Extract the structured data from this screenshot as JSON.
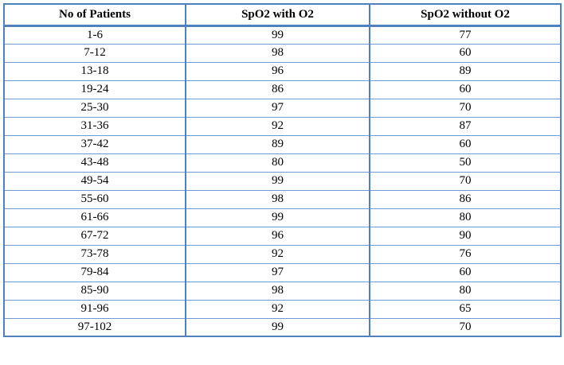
{
  "table": {
    "columns": [
      "No of Patients",
      "SpO2 with O2",
      "SpO2 without O2"
    ],
    "rows": [
      [
        "1-6",
        "99",
        "77"
      ],
      [
        "7-12",
        "98",
        "60"
      ],
      [
        "13-18",
        "96",
        "89"
      ],
      [
        "19-24",
        "86",
        "60"
      ],
      [
        "25-30",
        "97",
        "70"
      ],
      [
        "31-36",
        "92",
        "87"
      ],
      [
        "37-42",
        "89",
        "60"
      ],
      [
        "43-48",
        "80",
        "50"
      ],
      [
        "49-54",
        "99",
        "70"
      ],
      [
        "55-60",
        "98",
        "86"
      ],
      [
        "61-66",
        "99",
        "80"
      ],
      [
        "67-72",
        "96",
        "90"
      ],
      [
        "73-78",
        "92",
        "76"
      ],
      [
        "79-84",
        "97",
        "60"
      ],
      [
        "85-90",
        "98",
        "80"
      ],
      [
        "91-96",
        "92",
        "65"
      ],
      [
        "97-102",
        "99",
        "70"
      ]
    ]
  },
  "chart_data": {
    "type": "table",
    "categories": [
      "1-6",
      "7-12",
      "13-18",
      "19-24",
      "25-30",
      "31-36",
      "37-42",
      "43-48",
      "49-54",
      "55-60",
      "61-66",
      "67-72",
      "73-78",
      "79-84",
      "85-90",
      "91-96",
      "97-102"
    ],
    "series": [
      {
        "name": "SpO2 with O2",
        "values": [
          99,
          98,
          96,
          86,
          97,
          92,
          89,
          80,
          99,
          98,
          99,
          96,
          92,
          97,
          98,
          92,
          99
        ]
      },
      {
        "name": "SpO2 without O2",
        "values": [
          77,
          60,
          89,
          60,
          70,
          87,
          60,
          50,
          70,
          86,
          80,
          90,
          76,
          60,
          80,
          65,
          70
        ]
      }
    ],
    "xlabel": "No of Patients"
  },
  "colors": {
    "border_blue": "#4F81BD",
    "row_line_blue": "#6E9BD4",
    "text": "#000000",
    "background": "#FFFFFF"
  }
}
